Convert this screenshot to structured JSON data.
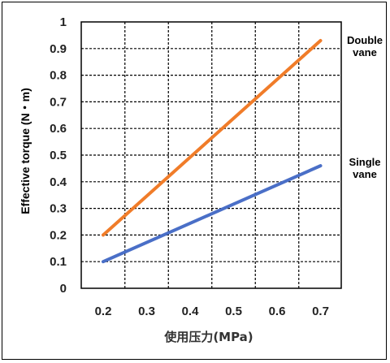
{
  "chart_data": {
    "type": "line",
    "xlabel": "使用压力(MPa)",
    "ylabel": "Effective torque (N・m)",
    "xlim": [
      0.2,
      0.7
    ],
    "ylim": [
      0,
      1
    ],
    "x_ticks": [
      "0.2",
      "0.3",
      "0.4",
      "0.5",
      "0.6",
      "0.7"
    ],
    "y_ticks": [
      "0",
      "0.1",
      "0.2",
      "0.3",
      "0.4",
      "0.5",
      "0.6",
      "0.7",
      "0.8",
      "0.9",
      "1"
    ],
    "grid": true,
    "series": [
      {
        "name": "Double vane",
        "label_lines": [
          "Double",
          "vane"
        ],
        "color": "#f07c29",
        "x": [
          0.2,
          0.7
        ],
        "y": [
          0.2,
          0.93
        ]
      },
      {
        "name": "Single vane",
        "label_lines": [
          "Single",
          "vane"
        ],
        "color": "#4a6fc7",
        "x": [
          0.2,
          0.7
        ],
        "y": [
          0.1,
          0.46
        ]
      }
    ]
  }
}
